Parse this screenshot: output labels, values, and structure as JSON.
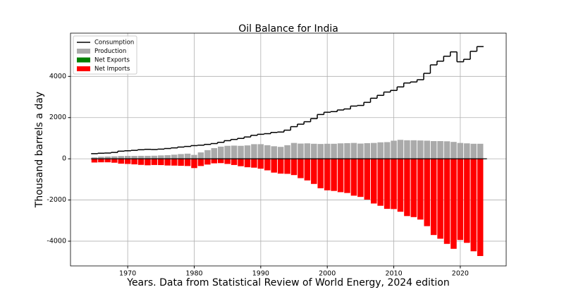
{
  "chart_data": {
    "type": "bar",
    "title": "Oil Balance for India",
    "x_label": "Years. Data from Statistical Review of World Energy, 2024 edition",
    "y_label": "Thousand barrels a day",
    "x": [
      1965,
      1966,
      1967,
      1968,
      1969,
      1970,
      1971,
      1972,
      1973,
      1974,
      1975,
      1976,
      1977,
      1978,
      1979,
      1980,
      1981,
      1982,
      1983,
      1984,
      1985,
      1986,
      1987,
      1988,
      1989,
      1990,
      1991,
      1992,
      1993,
      1994,
      1995,
      1996,
      1997,
      1998,
      1999,
      2000,
      2001,
      2002,
      2003,
      2004,
      2005,
      2006,
      2007,
      2008,
      2009,
      2010,
      2011,
      2012,
      2013,
      2014,
      2015,
      2016,
      2017,
      2018,
      2019,
      2020,
      2021,
      2022,
      2023
    ],
    "series": [
      {
        "name": "Consumption",
        "type": "step",
        "color": "#000000",
        "values": [
          250,
          270,
          280,
          310,
          370,
          390,
          410,
          440,
          460,
          450,
          470,
          500,
          530,
          570,
          600,
          640,
          660,
          700,
          740,
          800,
          880,
          940,
          990,
          1060,
          1140,
          1190,
          1220,
          1280,
          1300,
          1390,
          1560,
          1680,
          1800,
          1950,
          2150,
          2260,
          2290,
          2370,
          2420,
          2560,
          2590,
          2740,
          2940,
          3080,
          3240,
          3320,
          3490,
          3680,
          3730,
          3840,
          4150,
          4560,
          4740,
          4980,
          5190,
          4710,
          4830,
          5220,
          5450
        ]
      },
      {
        "name": "Production",
        "type": "bar",
        "color": "#aaaaaa",
        "values": [
          70,
          100,
          110,
          120,
          135,
          140,
          140,
          145,
          145,
          150,
          165,
          175,
          200,
          230,
          250,
          190,
          310,
          420,
          520,
          590,
          630,
          640,
          630,
          650,
          710,
          710,
          660,
          610,
          580,
          660,
          770,
          740,
          750,
          730,
          720,
          730,
          730,
          750,
          760,
          770,
          740,
          760,
          770,
          800,
          810,
          880,
          920,
          900,
          900,
          890,
          880,
          860,
          860,
          850,
          820,
          770,
          750,
          730,
          730
        ]
      },
      {
        "name": "Net Exports",
        "type": "bar",
        "color": "#008000",
        "values": [
          0,
          0,
          0,
          0,
          0,
          0,
          0,
          0,
          0,
          0,
          0,
          0,
          0,
          0,
          0,
          0,
          0,
          0,
          0,
          0,
          0,
          0,
          0,
          0,
          0,
          0,
          0,
          0,
          0,
          0,
          0,
          0,
          0,
          0,
          0,
          0,
          0,
          0,
          0,
          0,
          0,
          0,
          0,
          0,
          0,
          0,
          0,
          0,
          0,
          0,
          0,
          0,
          0,
          0,
          0,
          0,
          0,
          0,
          0
        ]
      },
      {
        "name": "Net Imports",
        "type": "bar",
        "color": "#ff0000",
        "values": [
          -180,
          -170,
          -170,
          -190,
          -235,
          -250,
          -270,
          -295,
          -315,
          -300,
          -305,
          -325,
          -330,
          -340,
          -350,
          -450,
          -350,
          -280,
          -220,
          -210,
          -250,
          -300,
          -360,
          -410,
          -430,
          -480,
          -560,
          -670,
          -720,
          -730,
          -790,
          -940,
          -1050,
          -1220,
          -1430,
          -1530,
          -1560,
          -1620,
          -1660,
          -1790,
          -1850,
          -1980,
          -2170,
          -2280,
          -2430,
          -2440,
          -2570,
          -2780,
          -2830,
          -2950,
          -3270,
          -3700,
          -3880,
          -4130,
          -4370,
          -3940,
          -4080,
          -4490,
          -4720
        ]
      }
    ],
    "xlim": [
      1961.4,
      2026.9
    ],
    "xticks": [
      1970,
      1980,
      1990,
      2000,
      2010,
      2020
    ],
    "ylim": [
      -5200,
      6100
    ],
    "yticks": [
      -4000,
      -2000,
      0,
      2000,
      4000
    ],
    "grid": true,
    "legend": "upper left"
  }
}
